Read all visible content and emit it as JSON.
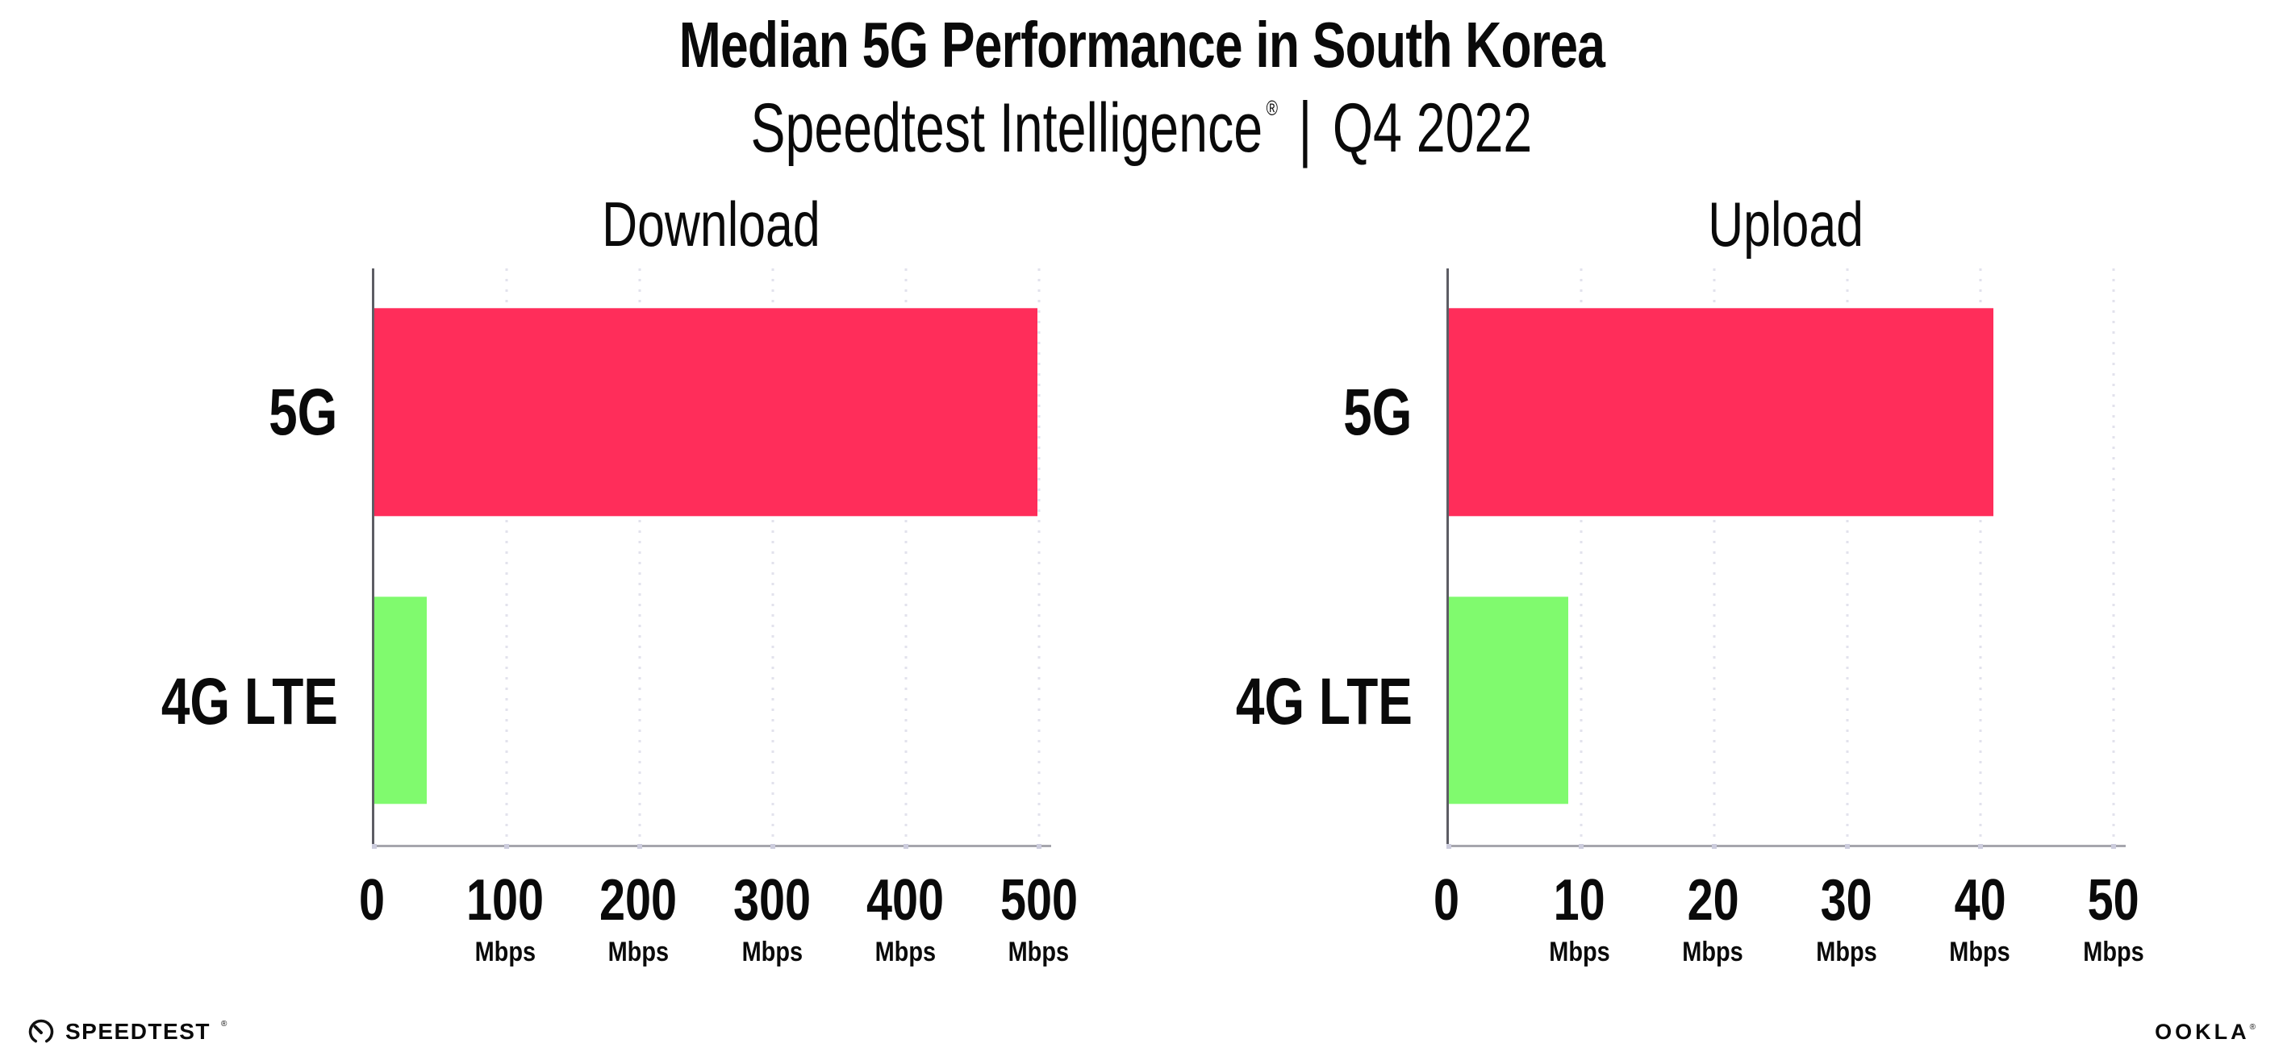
{
  "header": {
    "title": "Median 5G Performance in South Korea",
    "subtitle": {
      "brand": "Speedtest Intelligence",
      "mark": "®",
      "separator": "|",
      "period": "Q4 2022"
    }
  },
  "chart_data": [
    {
      "type": "bar",
      "orientation": "horizontal",
      "title": "Download",
      "categories": [
        "5G",
        "4G LTE"
      ],
      "values": [
        499,
        40
      ],
      "value_unit": "Mbps",
      "xlim": [
        0,
        500
      ],
      "xticks": [
        0,
        100,
        200,
        300,
        400,
        500
      ],
      "xtick_unit_label": "Mbps",
      "bar_colors": [
        "#FF2D5A",
        "#80FA6E"
      ],
      "grid": "vertical-dotted",
      "legend": "none"
    },
    {
      "type": "bar",
      "orientation": "horizontal",
      "title": "Upload",
      "categories": [
        "5G",
        "4G LTE"
      ],
      "values": [
        41,
        9
      ],
      "value_unit": "Mbps",
      "xlim": [
        0,
        50
      ],
      "xticks": [
        0,
        10,
        20,
        30,
        40,
        50
      ],
      "xtick_unit_label": "Mbps",
      "bar_colors": [
        "#FF2D5A",
        "#80FA6E"
      ],
      "grid": "vertical-dotted",
      "legend": "none"
    }
  ],
  "footer": {
    "speedtest": {
      "text": "SPEEDTEST",
      "mark": "®",
      "icon": "speedtest-gauge-icon"
    },
    "ookla": {
      "text": "OOKLA",
      "mark": "®"
    }
  },
  "colors": {
    "bar_5g": "#FF2D5A",
    "bar_4g_lte": "#80FA6E",
    "gridline": "#E2E2EC",
    "axis_y": "#5D5D64",
    "axis_x": "#A6A6AD",
    "tick_dot": "#CCCCDD",
    "text": "#0A0A0A",
    "background": "#FFFFFF"
  }
}
